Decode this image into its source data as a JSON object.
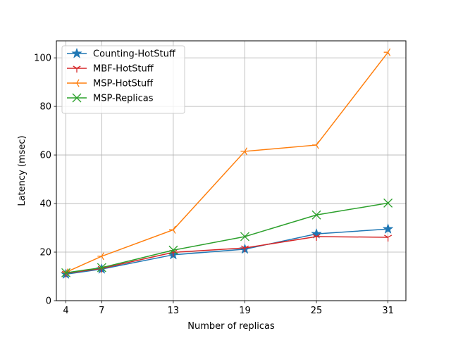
{
  "chart_data": {
    "type": "line",
    "title": "",
    "xlabel": "Number of replicas",
    "ylabel": "Latency (msec)",
    "x": [
      4,
      7,
      13,
      19,
      25,
      31
    ],
    "xticks": [
      "4",
      "7",
      "13",
      "19",
      "25",
      "31"
    ],
    "yticks": [
      "0",
      "20",
      "40",
      "60",
      "80",
      "100"
    ],
    "xlim": [
      3.2,
      32.5
    ],
    "ylim": [
      0,
      107
    ],
    "grid": true,
    "legend_position": "top-left",
    "series": [
      {
        "name": "Counting-HotStuff",
        "color": "#1f77b4",
        "marker": "star",
        "values": [
          10.9,
          13.0,
          18.9,
          21.2,
          27.5,
          29.5
        ]
      },
      {
        "name": "MBF-HotStuff",
        "color": "#d62728",
        "marker": "tri-down",
        "values": [
          11.3,
          13.3,
          19.9,
          21.7,
          26.4,
          26.1
        ]
      },
      {
        "name": "MSP-HotStuff",
        "color": "#ff7f0e",
        "marker": "tri-left",
        "values": [
          11.7,
          18.3,
          29.2,
          61.5,
          64.1,
          102.3
        ]
      },
      {
        "name": "MSP-Replicas",
        "color": "#2ca02c",
        "marker": "x",
        "values": [
          11.5,
          13.6,
          20.8,
          26.4,
          35.3,
          40.2
        ]
      }
    ]
  }
}
